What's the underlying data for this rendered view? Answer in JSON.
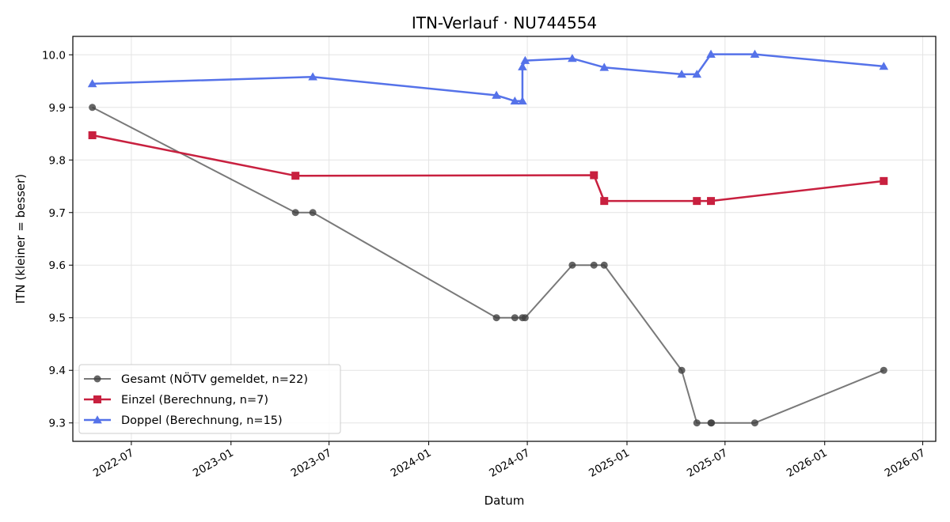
{
  "chart_data": {
    "type": "line",
    "title": "ITN-Verlauf · NU744554",
    "xlabel": "Datum",
    "ylabel": "ITN  (kleiner = besser)",
    "x_type": "date",
    "xlim": [
      "2022-03-15",
      "2026-07-25"
    ],
    "ylim": [
      9.265,
      10.035
    ],
    "x_ticks": [
      "2022-07-01",
      "2023-01-01",
      "2023-07-01",
      "2024-01-01",
      "2024-07-01",
      "2025-01-01",
      "2025-07-01",
      "2026-01-01",
      "2026-07-01"
    ],
    "x_tick_labels": [
      "2022-07",
      "2023-01",
      "2023-07",
      "2024-01",
      "2024-07",
      "2025-01",
      "2025-07",
      "2026-01",
      "2026-07"
    ],
    "y_ticks": [
      9.3,
      9.4,
      9.5,
      9.6,
      9.7,
      9.8,
      9.9,
      10.0
    ],
    "y_tick_labels": [
      "9.3",
      "9.4",
      "9.5",
      "9.6",
      "9.7",
      "9.8",
      "9.9",
      "10.0"
    ],
    "grid": true,
    "legend_position": "lower-left",
    "series": [
      {
        "name": "Gesamt (NÖTV gemeldet, n=22)",
        "color": "#404040",
        "marker": "circle",
        "points": [
          {
            "x": "2022-04-20",
            "y": 9.9
          },
          {
            "x": "2023-04-30",
            "y": 9.7
          },
          {
            "x": "2023-06-01",
            "y": 9.7
          },
          {
            "x": "2024-05-05",
            "y": 9.5
          },
          {
            "x": "2024-06-08",
            "y": 9.5
          },
          {
            "x": "2024-06-22",
            "y": 9.5
          },
          {
            "x": "2024-06-27",
            "y": 9.5
          },
          {
            "x": "2024-09-22",
            "y": 9.6
          },
          {
            "x": "2024-11-01",
            "y": 9.6
          },
          {
            "x": "2024-11-20",
            "y": 9.6
          },
          {
            "x": "2025-04-12",
            "y": 9.4
          },
          {
            "x": "2025-05-10",
            "y": 9.3
          },
          {
            "x": "2025-06-05",
            "y": 9.3
          },
          {
            "x": "2025-06-06",
            "y": 9.3
          },
          {
            "x": "2025-08-25",
            "y": 9.3
          },
          {
            "x": "2026-04-20",
            "y": 9.4
          }
        ]
      },
      {
        "name": "Einzel (Berechnung, n=7)",
        "color": "#c8203f",
        "marker": "square",
        "points": [
          {
            "x": "2022-04-20",
            "y": 9.847
          },
          {
            "x": "2023-04-30",
            "y": 9.77
          },
          {
            "x": "2024-11-01",
            "y": 9.771
          },
          {
            "x": "2024-11-20",
            "y": 9.722
          },
          {
            "x": "2025-05-10",
            "y": 9.722
          },
          {
            "x": "2025-06-05",
            "y": 9.722
          },
          {
            "x": "2026-04-20",
            "y": 9.76
          }
        ]
      },
      {
        "name": "Doppel (Berechnung, n=15)",
        "color": "#5572e9",
        "marker": "triangle",
        "points": [
          {
            "x": "2022-04-20",
            "y": 9.945
          },
          {
            "x": "2023-06-01",
            "y": 9.958
          },
          {
            "x": "2024-05-05",
            "y": 9.923
          },
          {
            "x": "2024-06-08",
            "y": 9.912
          },
          {
            "x": "2024-06-22",
            "y": 9.912
          },
          {
            "x": "2024-06-22",
            "y": 9.977
          },
          {
            "x": "2024-06-27",
            "y": 9.989
          },
          {
            "x": "2024-09-22",
            "y": 9.993
          },
          {
            "x": "2024-11-20",
            "y": 9.976
          },
          {
            "x": "2025-04-12",
            "y": 9.963
          },
          {
            "x": "2025-05-10",
            "y": 9.963
          },
          {
            "x": "2025-06-05",
            "y": 10.001
          },
          {
            "x": "2025-08-25",
            "y": 10.001
          },
          {
            "x": "2026-04-20",
            "y": 9.978
          }
        ]
      }
    ]
  }
}
